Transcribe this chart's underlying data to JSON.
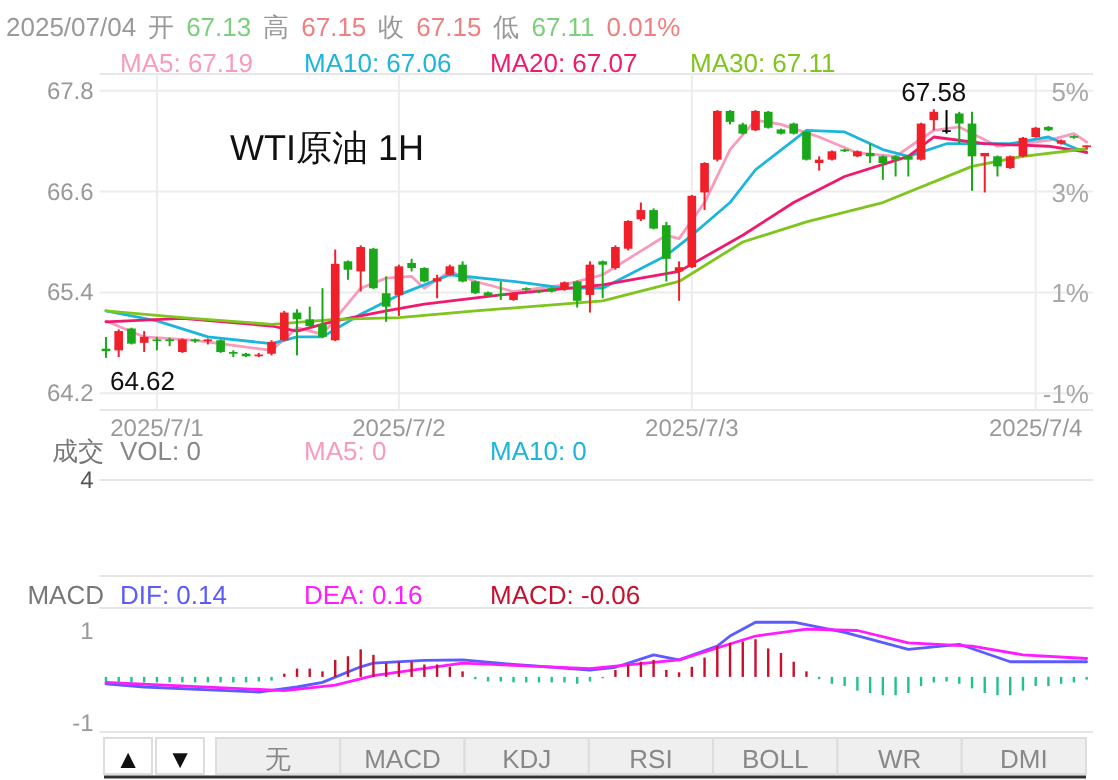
{
  "chart_data": [
    {
      "type": "candlestick",
      "title": "WTI原油 1H",
      "categories": [
        null,
        null,
        null,
        null,
        "2025/7/1",
        null,
        null,
        null,
        null,
        null,
        null,
        null,
        null,
        null,
        null,
        null,
        null,
        null,
        null,
        null,
        null,
        null,
        null,
        "2025/7/2",
        null,
        null,
        null,
        null,
        null,
        null,
        null,
        null,
        null,
        null,
        null,
        null,
        null,
        null,
        null,
        null,
        null,
        null,
        null,
        null,
        null,
        null,
        "2025/7/3",
        null,
        null,
        null,
        null,
        null,
        null,
        null,
        null,
        null,
        null,
        null,
        null,
        null,
        null,
        null,
        null,
        null,
        null,
        null,
        null,
        null,
        null,
        null,
        null,
        null,
        null,
        "2025/7/4",
        null,
        null,
        null,
        null
      ],
      "ohlc": [
        [
          64.73,
          64.87,
          64.62,
          64.7
        ],
        [
          64.71,
          64.96,
          64.63,
          64.94
        ],
        [
          64.97,
          64.98,
          64.78,
          64.79
        ],
        [
          64.8,
          64.94,
          64.69,
          64.87
        ],
        [
          64.84,
          64.87,
          64.71,
          64.82
        ],
        [
          64.84,
          64.86,
          64.76,
          64.82
        ],
        [
          64.69,
          64.85,
          64.68,
          64.84
        ],
        [
          64.84,
          64.85,
          64.8,
          64.82
        ],
        [
          64.82,
          64.85,
          64.78,
          64.84
        ],
        [
          64.83,
          64.84,
          64.68,
          64.69
        ],
        [
          64.69,
          64.71,
          64.63,
          64.67
        ],
        [
          64.67,
          64.68,
          64.63,
          64.64
        ],
        [
          64.64,
          64.68,
          64.63,
          64.66
        ],
        [
          64.67,
          64.83,
          64.65,
          64.81
        ],
        [
          64.83,
          65.18,
          64.82,
          65.16
        ],
        [
          65.16,
          65.2,
          64.65,
          65.08
        ],
        [
          65.08,
          65.23,
          64.99,
          65.0
        ],
        [
          65.02,
          65.45,
          64.86,
          64.87
        ],
        [
          64.83,
          65.91,
          64.82,
          65.74
        ],
        [
          65.77,
          65.78,
          65.55,
          65.67
        ],
        [
          65.65,
          65.96,
          65.41,
          65.94
        ],
        [
          65.92,
          65.93,
          65.44,
          65.45
        ],
        [
          65.39,
          65.59,
          65.05,
          65.23
        ],
        [
          65.37,
          65.73,
          65.12,
          65.71
        ],
        [
          65.75,
          65.8,
          65.65,
          65.69
        ],
        [
          65.69,
          65.7,
          65.52,
          65.53
        ],
        [
          65.53,
          65.61,
          65.33,
          65.57
        ],
        [
          65.61,
          65.73,
          65.6,
          65.71
        ],
        [
          65.73,
          65.77,
          65.52,
          65.53
        ],
        [
          65.53,
          65.54,
          65.38,
          65.39
        ],
        [
          65.4,
          65.41,
          65.35,
          65.36
        ],
        [
          65.38,
          65.53,
          65.31,
          65.36
        ],
        [
          65.31,
          65.4,
          65.3,
          65.39
        ],
        [
          65.45,
          65.46,
          65.42,
          65.44
        ],
        [
          65.42,
          65.43,
          65.39,
          65.41
        ],
        [
          65.45,
          65.46,
          65.4,
          65.41
        ],
        [
          65.44,
          65.53,
          65.42,
          65.52
        ],
        [
          65.53,
          65.54,
          65.22,
          65.3
        ],
        [
          65.37,
          65.77,
          65.16,
          65.73
        ],
        [
          65.77,
          65.78,
          65.33,
          65.73
        ],
        [
          65.69,
          65.96,
          65.67,
          65.94
        ],
        [
          65.92,
          66.26,
          65.9,
          66.25
        ],
        [
          66.27,
          66.47,
          66.25,
          66.38
        ],
        [
          66.38,
          66.4,
          66.15,
          66.16
        ],
        [
          66.2,
          66.24,
          65.53,
          65.8
        ],
        [
          65.65,
          65.77,
          65.3,
          65.7
        ],
        [
          65.7,
          66.56,
          65.69,
          66.55
        ],
        [
          66.59,
          66.95,
          66.38,
          66.94
        ],
        [
          66.98,
          67.57,
          66.96,
          67.56
        ],
        [
          67.56,
          67.57,
          67.4,
          67.43
        ],
        [
          67.4,
          67.42,
          67.28,
          67.29
        ],
        [
          67.33,
          67.57,
          67.32,
          67.56
        ],
        [
          67.55,
          67.56,
          67.35,
          67.36
        ],
        [
          67.34,
          67.35,
          67.28,
          67.29
        ],
        [
          67.41,
          67.42,
          67.28,
          67.29
        ],
        [
          67.31,
          67.32,
          66.97,
          66.98
        ],
        [
          66.94,
          67.02,
          66.85,
          66.98
        ],
        [
          66.98,
          67.09,
          66.97,
          67.08
        ],
        [
          67.1,
          67.11,
          67.07,
          67.08
        ],
        [
          67.02,
          67.09,
          67.01,
          67.08
        ],
        [
          67.06,
          67.17,
          66.94,
          67.02
        ],
        [
          67.02,
          67.03,
          66.74,
          66.94
        ],
        [
          67.02,
          67.03,
          66.78,
          66.98
        ],
        [
          67.02,
          67.03,
          66.78,
          66.98
        ],
        [
          66.98,
          67.42,
          66.97,
          67.41
        ],
        [
          67.45,
          67.58,
          67.33,
          67.55
        ],
        [
          67.33,
          67.57,
          67.29,
          67.33
        ],
        [
          67.53,
          67.55,
          67.17,
          67.41
        ],
        [
          67.41,
          67.55,
          66.61,
          67.02
        ],
        [
          67.02,
          67.06,
          66.59,
          67.06
        ],
        [
          67.02,
          67.03,
          66.78,
          66.9
        ],
        [
          66.88,
          67.03,
          66.87,
          67.02
        ],
        [
          67.02,
          67.25,
          67.01,
          67.24
        ],
        [
          67.25,
          67.37,
          67.24,
          67.36
        ],
        [
          67.37,
          67.38,
          67.32,
          67.33
        ],
        [
          67.17,
          67.22,
          67.16,
          67.21
        ],
        [
          67.26,
          67.27,
          67.23,
          67.25
        ],
        [
          67.13,
          67.15,
          67.11,
          67.15
        ]
      ],
      "series": [
        {
          "name": "MA5: 67.19",
          "type": "line",
          "color": "#f99bbd",
          "values": [
            65.06,
            null,
            null,
            64.87,
            null,
            null,
            null,
            64.83,
            null,
            null,
            null,
            null,
            null,
            64.71,
            null,
            64.98,
            null,
            64.9,
            null,
            null,
            65.45,
            null,
            65.57,
            null,
            65.59,
            65.45,
            null,
            65.65,
            null,
            65.53,
            null,
            null,
            65.41,
            null,
            null,
            null,
            65.49,
            null,
            null,
            65.61,
            null,
            null,
            null,
            null,
            66.08,
            66.04,
            null,
            66.47,
            null,
            67.1,
            null,
            67.45,
            null,
            67.4,
            null,
            null,
            67.25,
            null,
            null,
            67.06,
            null,
            null,
            67.02,
            null,
            null,
            67.33,
            null,
            67.37,
            null,
            null,
            67.14,
            null,
            null,
            null,
            67.21,
            null,
            67.29,
            67.19
          ]
        },
        {
          "name": "MA10: 67.06",
          "type": "line",
          "color": "#1cb5dc",
          "values": [
            65.18,
            null,
            null,
            null,
            65.06,
            null,
            null,
            null,
            64.87,
            null,
            null,
            null,
            null,
            64.79,
            null,
            64.87,
            null,
            64.87,
            null,
            null,
            65.14,
            null,
            null,
            65.37,
            null,
            null,
            null,
            65.61,
            null,
            null,
            null,
            null,
            65.53,
            null,
            null,
            null,
            65.45,
            null,
            null,
            65.45,
            null,
            null,
            null,
            null,
            65.84,
            null,
            66.08,
            null,
            null,
            66.47,
            null,
            66.86,
            null,
            null,
            null,
            67.33,
            null,
            null,
            67.31,
            null,
            null,
            67.1,
            null,
            67.02,
            null,
            null,
            67.17,
            null,
            null,
            null,
            null,
            67.17,
            null,
            null,
            67.25,
            null,
            null,
            67.06
          ]
        },
        {
          "name": "MA20: 67.07",
          "type": "line",
          "color": "#f0196e",
          "values": [
            65.05,
            null,
            null,
            null,
            null,
            null,
            65.09,
            null,
            null,
            null,
            null,
            null,
            null,
            65.0,
            null,
            64.94,
            null,
            null,
            65.06,
            null,
            null,
            null,
            65.18,
            null,
            null,
            65.26,
            null,
            null,
            null,
            null,
            null,
            65.37,
            null,
            null,
            null,
            null,
            null,
            null,
            null,
            65.49,
            null,
            null,
            null,
            null,
            null,
            65.65,
            null,
            null,
            null,
            null,
            66.08,
            null,
            null,
            null,
            66.47,
            null,
            null,
            null,
            66.78,
            null,
            null,
            null,
            null,
            67.02,
            null,
            67.25,
            null,
            null,
            null,
            67.17,
            null,
            null,
            null,
            null,
            67.14,
            null,
            null,
            67.07
          ]
        },
        {
          "name": "MA30: 67.11",
          "type": "line",
          "color": "#7ec51e",
          "values": [
            65.18,
            null,
            null,
            null,
            null,
            null,
            65.1,
            null,
            null,
            null,
            null,
            null,
            null,
            65.02,
            null,
            null,
            null,
            null,
            65.08,
            null,
            null,
            null,
            null,
            65.1,
            null,
            null,
            null,
            null,
            null,
            65.18,
            null,
            null,
            null,
            null,
            null,
            null,
            null,
            null,
            null,
            65.3,
            null,
            null,
            null,
            null,
            null,
            65.53,
            null,
            null,
            null,
            null,
            66.0,
            null,
            null,
            null,
            null,
            66.24,
            null,
            null,
            null,
            null,
            null,
            66.47,
            null,
            null,
            null,
            null,
            null,
            null,
            66.9,
            null,
            null,
            null,
            67.02,
            null,
            null,
            null,
            null,
            67.11
          ]
        }
      ],
      "ylim": [
        64.0,
        68.0
      ],
      "yticks": [
        64.2,
        65.4,
        66.6,
        67.8
      ],
      "y2lim": [
        -1.33,
        5.33
      ],
      "y2ticks": [
        {
          "value": -1,
          "label": "-1%"
        },
        {
          "value": 1,
          "label": "1%"
        },
        {
          "value": 3,
          "label": "3%"
        },
        {
          "value": 5,
          "label": "5%"
        }
      ],
      "grid": true,
      "legend": "top",
      "annotations": [
        "2025/07/04",
        "开",
        "67.13",
        "高",
        "67.15",
        "收",
        "67.15",
        "低",
        "67.11",
        "0.01%",
        "67.58",
        "64.62"
      ]
    },
    {
      "type": "other",
      "annotations": [
        "成交",
        "VOL: 0",
        "MA5: 0",
        "MA10: 0",
        "4"
      ],
      "colors": [
        "#777777",
        "#888888",
        "#f99bbd",
        "#1cb5dc",
        "#555555"
      ]
    },
    {
      "type": "bar",
      "ylabel": "MACD",
      "categories": [
        null,
        null,
        null,
        null,
        null,
        null,
        null,
        null,
        null,
        null,
        null,
        null,
        null,
        null,
        null,
        null,
        null,
        null,
        null,
        null,
        null,
        null,
        null,
        null,
        null,
        null,
        null,
        null,
        null,
        null,
        null,
        null,
        null,
        null,
        null,
        null,
        null,
        null,
        null,
        null,
        null,
        null,
        null,
        null,
        null,
        null,
        null,
        null,
        null,
        null,
        null,
        null,
        null,
        null,
        null,
        null,
        null,
        null,
        null,
        null,
        null,
        null,
        null,
        null,
        null,
        null,
        null,
        null,
        null,
        null,
        null,
        null,
        null,
        null,
        null,
        null,
        null,
        null
      ],
      "series": [
        {
          "name": "DIF: 0.14",
          "type": "line",
          "color": "#5b5bff",
          "values": [
            -0.15,
            null,
            null,
            -0.22,
            null,
            null,
            null,
            null,
            null,
            null,
            null,
            null,
            -0.33,
            null,
            null,
            -0.22,
            null,
            -0.12,
            null,
            null,
            0.22,
            0.3,
            null,
            null,
            null,
            0.36,
            null,
            null,
            0.37,
            null,
            null,
            null,
            0.27,
            null,
            null,
            null,
            null,
            null,
            0.15,
            null,
            0.21,
            null,
            null,
            0.48,
            null,
            0.37,
            null,
            null,
            0.67,
            0.89,
            null,
            1.19,
            null,
            null,
            1.19,
            null,
            null,
            null,
            0.97,
            null,
            null,
            null,
            null,
            0.6,
            null,
            null,
            null,
            0.71,
            null,
            null,
            null,
            0.33,
            null,
            null,
            null,
            null,
            null,
            0.33
          ]
        },
        {
          "name": "DEA: 0.16",
          "type": "line",
          "color": "#ff1aff",
          "values": [
            -0.12,
            null,
            null,
            null,
            null,
            null,
            null,
            null,
            null,
            null,
            null,
            null,
            null,
            null,
            -0.3,
            null,
            null,
            null,
            -0.18,
            null,
            null,
            0.03,
            null,
            null,
            null,
            null,
            null,
            null,
            0.3,
            null,
            null,
            null,
            null,
            null,
            null,
            null,
            null,
            null,
            0.18,
            null,
            null,
            null,
            null,
            null,
            null,
            0.37,
            null,
            null,
            null,
            null,
            null,
            0.89,
            null,
            null,
            null,
            1.04,
            null,
            null,
            null,
            1.01,
            null,
            null,
            null,
            0.74,
            null,
            null,
            null,
            null,
            0.67,
            null,
            null,
            null,
            0.48,
            null,
            null,
            null,
            null,
            0.4
          ]
        },
        {
          "name": "MACD: -0.06",
          "type": "bar",
          "color": "#c8102e",
          "values": [
            -0.1,
            -0.12,
            -0.12,
            -0.12,
            -0.12,
            -0.12,
            -0.12,
            -0.12,
            -0.12,
            -0.12,
            -0.12,
            -0.12,
            -0.1,
            -0.08,
            0.07,
            0.18,
            0.18,
            0.12,
            0.37,
            0.45,
            0.6,
            0.48,
            0.3,
            0.33,
            0.33,
            0.27,
            0.27,
            0.22,
            0.12,
            -0.05,
            -0.1,
            -0.1,
            -0.12,
            -0.12,
            -0.12,
            -0.12,
            -0.12,
            -0.15,
            -0.1,
            -0.03,
            0.15,
            0.27,
            0.33,
            0.37,
            0.15,
            0.1,
            0.22,
            0.42,
            0.67,
            0.74,
            0.77,
            0.82,
            0.62,
            0.52,
            0.33,
            0.12,
            -0.05,
            -0.15,
            -0.2,
            -0.3,
            -0.35,
            -0.4,
            -0.4,
            -0.35,
            -0.2,
            -0.12,
            -0.1,
            -0.15,
            -0.25,
            -0.35,
            -0.4,
            -0.4,
            -0.3,
            -0.2,
            -0.2,
            -0.15,
            -0.12,
            -0.06
          ],
          "colors": [
            "#21c38a",
            "#21c38a",
            "#21c38a",
            "#21c38a",
            "#21c38a",
            "#21c38a",
            "#21c38a",
            "#21c38a",
            "#21c38a",
            "#21c38a",
            "#21c38a",
            "#21c38a",
            "#21c38a",
            "#21c38a",
            "#c8102e",
            "#c8102e",
            "#c8102e",
            "#c8102e",
            "#c8102e",
            "#c8102e",
            "#c8102e",
            "#c8102e",
            "#c8102e",
            "#c8102e",
            "#c8102e",
            "#c8102e",
            "#c8102e",
            "#c8102e",
            "#c8102e",
            "#21c38a",
            "#21c38a",
            "#21c38a",
            "#21c38a",
            "#21c38a",
            "#21c38a",
            "#21c38a",
            "#21c38a",
            "#21c38a",
            "#21c38a",
            "#21c38a",
            "#c8102e",
            "#c8102e",
            "#c8102e",
            "#c8102e",
            "#c8102e",
            "#c8102e",
            "#c8102e",
            "#c8102e",
            "#c8102e",
            "#c8102e",
            "#c8102e",
            "#c8102e",
            "#c8102e",
            "#c8102e",
            "#c8102e",
            "#c8102e",
            "#21c38a",
            "#21c38a",
            "#21c38a",
            "#21c38a",
            "#21c38a",
            "#21c38a",
            "#21c38a",
            "#21c38a",
            "#21c38a",
            "#21c38a",
            "#21c38a",
            "#21c38a",
            "#21c38a",
            "#21c38a",
            "#21c38a",
            "#21c38a",
            "#21c38a",
            "#21c38a",
            "#21c38a",
            "#21c38a",
            "#21c38a",
            "#21c38a"
          ]
        }
      ],
      "ylim": [
        -1.2,
        1.5
      ],
      "yticks": [
        -1,
        1
      ],
      "tick_labels": "y",
      "legend": "top"
    },
    {
      "type": "other",
      "annotations": [
        "▲",
        "▼",
        "无",
        "MACD",
        "KDJ",
        "RSI",
        "BOLL",
        "WR",
        "DMI"
      ]
    }
  ]
}
